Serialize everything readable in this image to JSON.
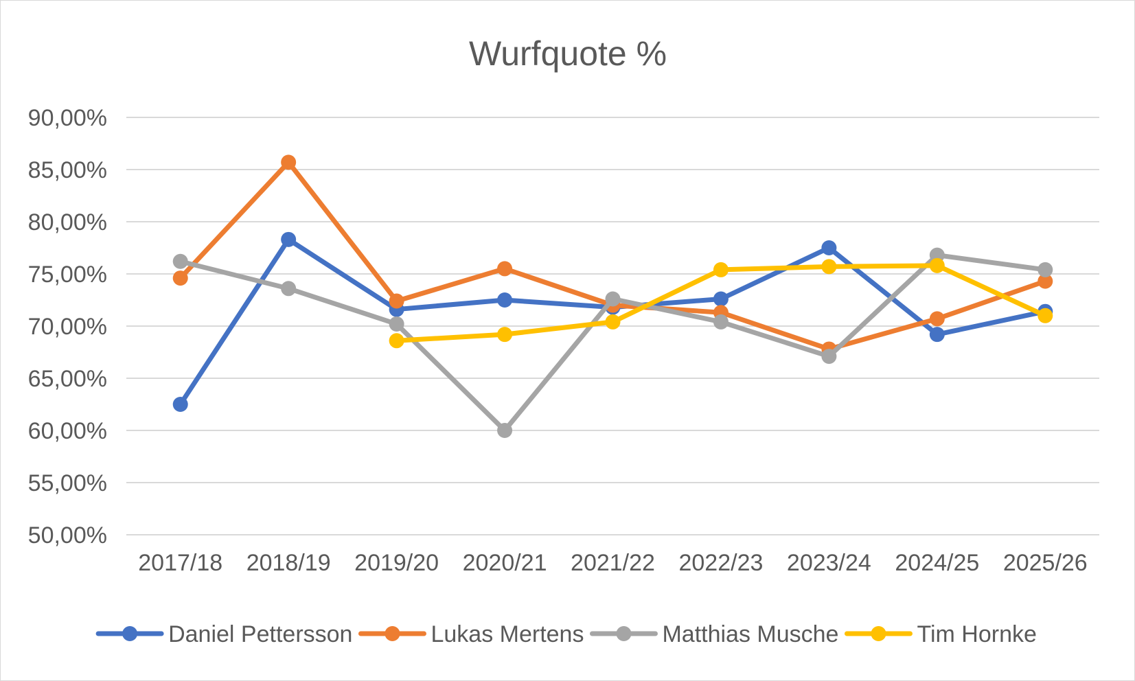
{
  "chart_data": {
    "type": "line",
    "title": "Wurfquote %",
    "xlabel": "",
    "ylabel": "",
    "categories": [
      "2017/18",
      "2018/19",
      "2019/20",
      "2020/21",
      "2021/22",
      "2022/23",
      "2023/24",
      "2024/25",
      "2025/26"
    ],
    "y_tick_labels": [
      "50,00%",
      "55,00%",
      "60,00%",
      "65,00%",
      "70,00%",
      "75,00%",
      "80,00%",
      "85,00%",
      "90,00%"
    ],
    "ylim": [
      50,
      90
    ],
    "y_step": 5,
    "grid": true,
    "legend_position": "bottom",
    "series": [
      {
        "name": "Daniel Pettersson",
        "color": "#4472c4",
        "values": [
          62.5,
          78.3,
          71.6,
          72.5,
          71.8,
          72.6,
          77.5,
          69.2,
          71.4
        ]
      },
      {
        "name": "Lukas Mertens",
        "color": "#ed7d31",
        "values": [
          74.6,
          85.7,
          72.4,
          75.5,
          72.0,
          71.3,
          67.8,
          70.7,
          74.3
        ]
      },
      {
        "name": "Matthias Musche",
        "color": "#a5a5a5",
        "values": [
          76.2,
          73.6,
          70.2,
          60.0,
          72.6,
          70.4,
          67.1,
          76.8,
          75.4
        ]
      },
      {
        "name": "Tim Hornke",
        "color": "#ffc000",
        "values": [
          null,
          null,
          68.6,
          69.2,
          70.4,
          75.4,
          75.7,
          75.8,
          71.0
        ]
      }
    ]
  }
}
